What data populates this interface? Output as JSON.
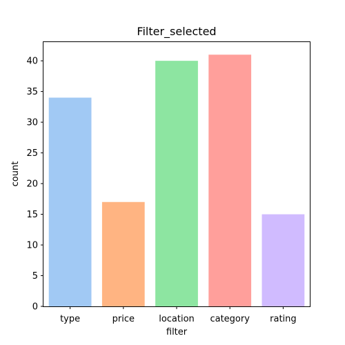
{
  "chart_data": {
    "type": "bar",
    "title": "Filter_selected",
    "xlabel": "filter",
    "ylabel": "count",
    "categories": [
      "type",
      "price",
      "location",
      "category",
      "rating"
    ],
    "values": [
      34,
      17,
      40,
      41,
      15
    ],
    "colors": [
      "#a1c9f4",
      "#ffb482",
      "#8de5a1",
      "#ff9f9b",
      "#d0bbff"
    ],
    "ylim": [
      0,
      43.05
    ],
    "yticks": [
      0,
      5,
      10,
      15,
      20,
      25,
      30,
      35,
      40
    ],
    "grid": false,
    "legend": "none"
  }
}
